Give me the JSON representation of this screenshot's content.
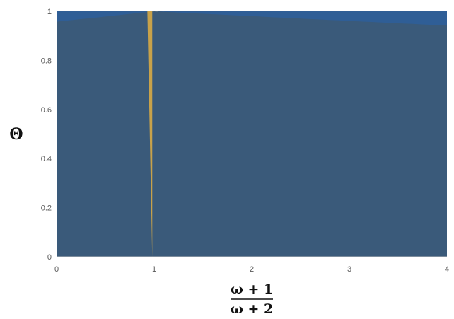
{
  "chart_data": {
    "type": "area",
    "title": "",
    "xlabel": {
      "numerator": "ω + 1",
      "denominator": "ω + 2"
    },
    "ylabel": "Θ",
    "xlim": [
      0,
      4
    ],
    "ylim": [
      0,
      1
    ],
    "x_ticks": [
      "0",
      "1",
      "2",
      "3",
      "4"
    ],
    "y_ticks": [
      "0",
      "0.2",
      "0.4",
      "0.6",
      "0.8",
      "1"
    ],
    "grid": false,
    "legend": "none",
    "pole_x": 1,
    "series_count": 84,
    "palette": [
      "#c8a24a",
      "#2f5e96",
      "#3f6c2b",
      "#8a8a8a",
      "#c0641e",
      "#7aa0d0",
      "#e6b0a0",
      "#e6d48a",
      "#a8c8e0",
      "#234d20",
      "#d98a3a",
      "#b8d08a",
      "#1f2a36",
      "#caa0b8",
      "#6f8faf",
      "#e0c070",
      "#5a7a3a",
      "#c47a5a",
      "#d8d8c0",
      "#3a5a7a",
      "#b0b060",
      "#7a3a2a",
      "#90c0b0",
      "#404830"
    ]
  }
}
